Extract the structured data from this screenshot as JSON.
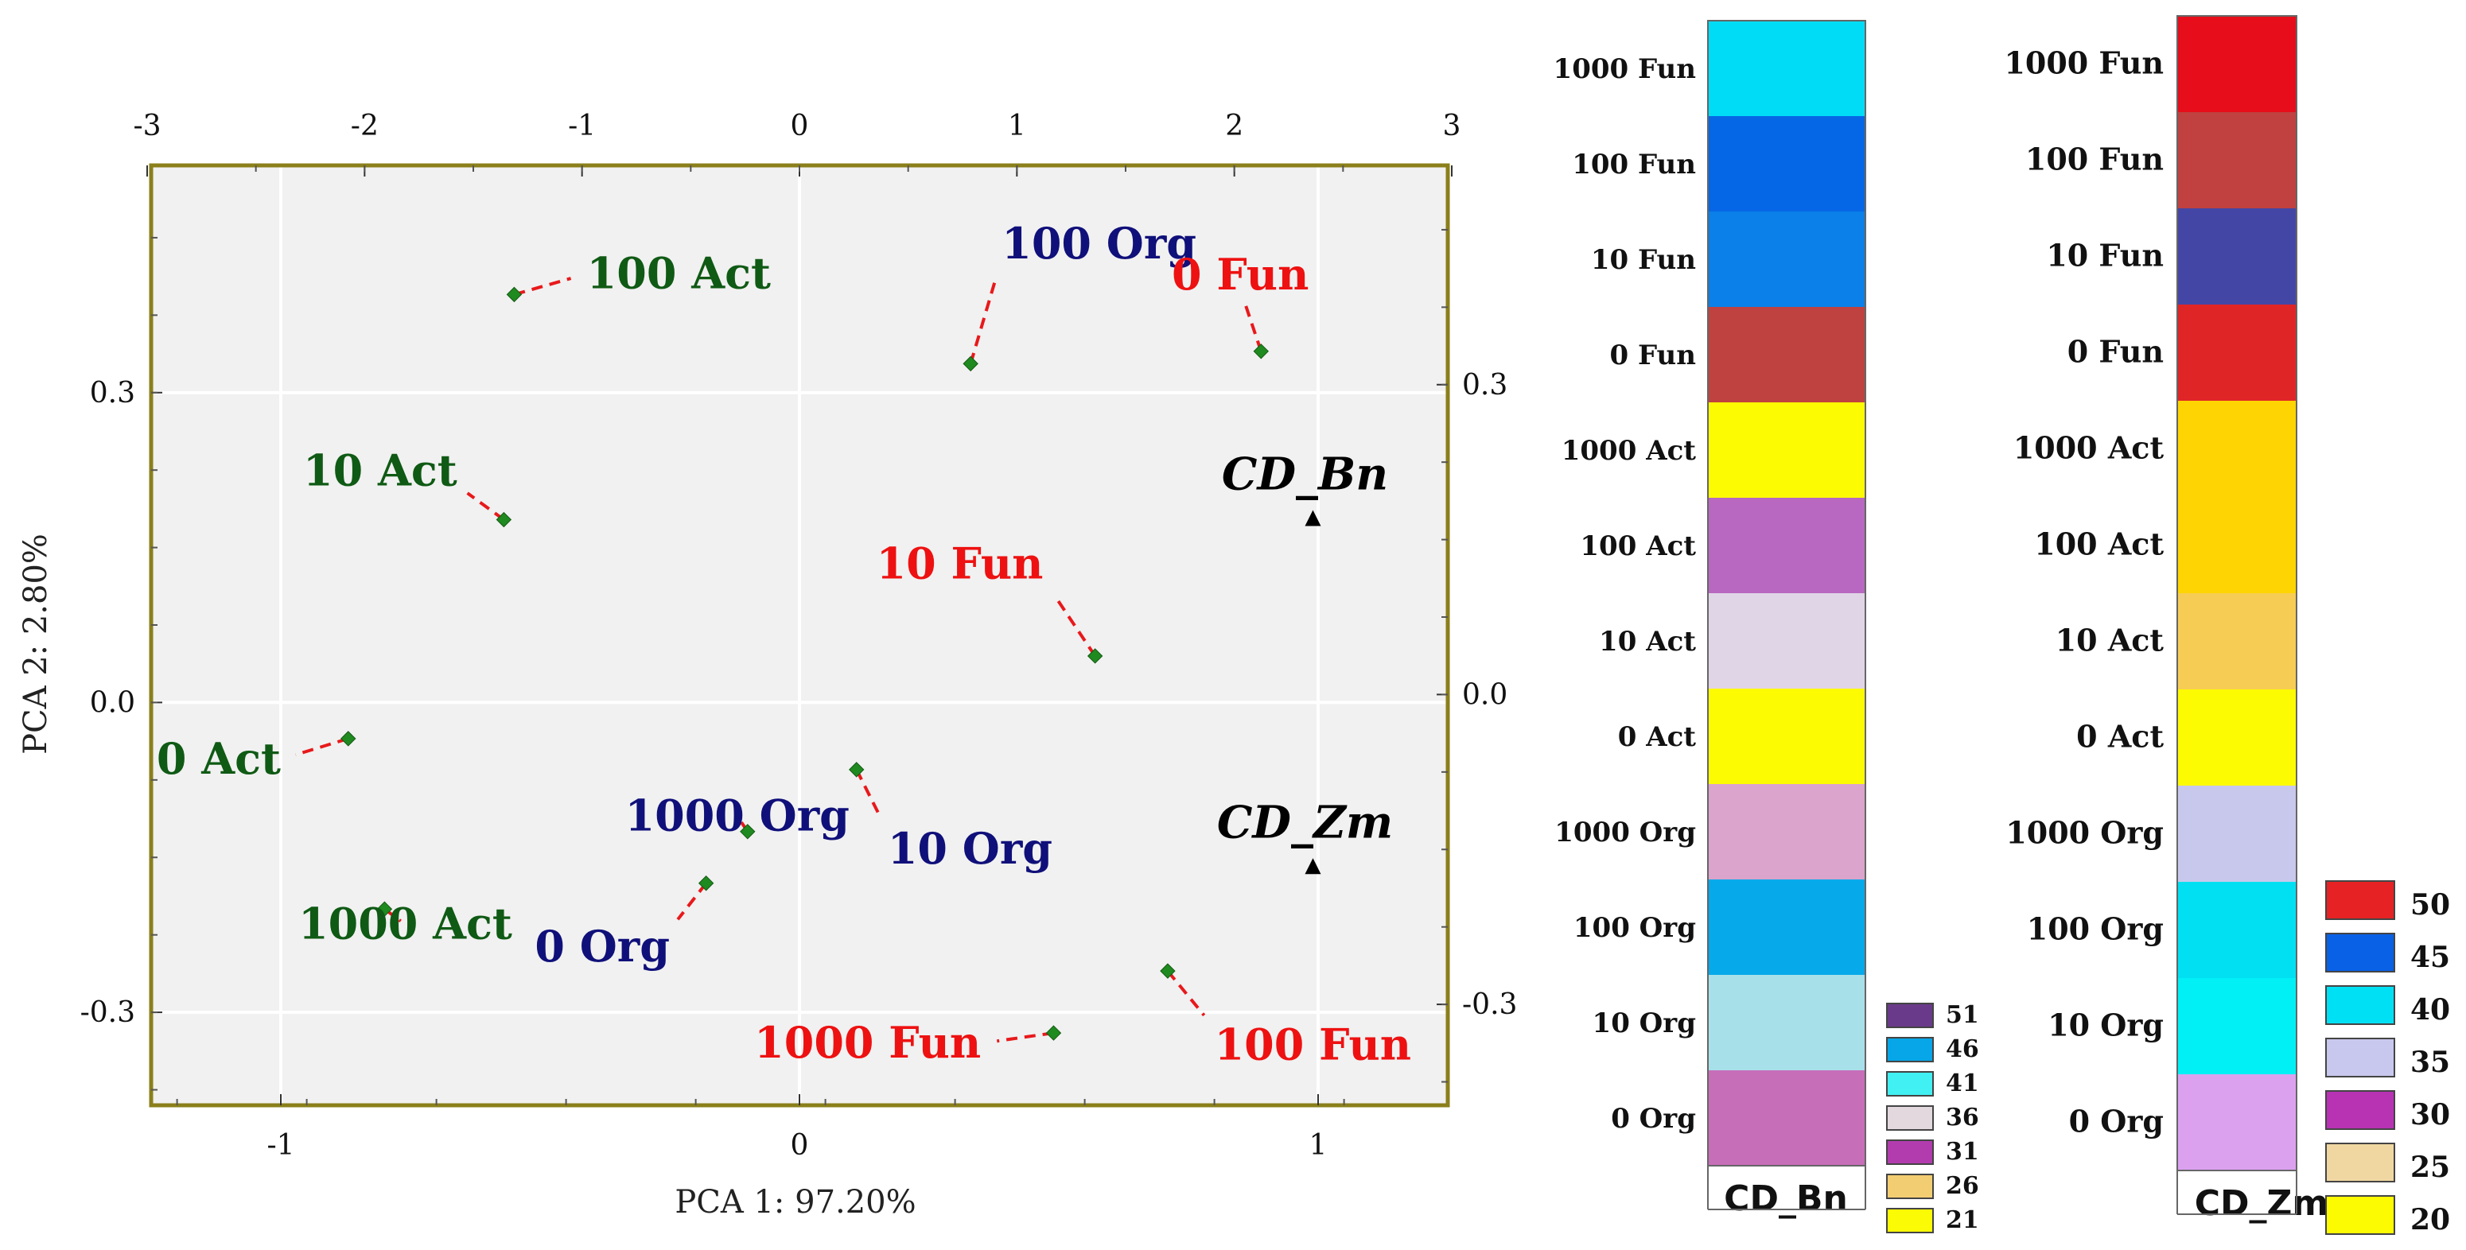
{
  "chart_data": [
    {
      "type": "scatter",
      "title": "",
      "xlabel": "PCA 1: 97.20%",
      "ylabel": "PCA 2:  2.80%",
      "xlim": [
        -1.25,
        1.25
      ],
      "ylim": [
        -0.39,
        0.52
      ],
      "grid": true,
      "x_ticks": [
        -1,
        0,
        1
      ],
      "y_ticks": [
        -0.3,
        0.0,
        0.3
      ],
      "x_tick_labels": [
        "-1",
        "0",
        "1"
      ],
      "y_tick_labels": [
        "-0.3",
        "0.0",
        "0.3"
      ],
      "top_axis": {
        "lim": [
          -3,
          3
        ],
        "ticks": [
          -3,
          -2,
          -1,
          0,
          1,
          2,
          3
        ],
        "tick_labels": [
          "-3",
          "-2",
          "-1",
          "0",
          "1",
          "2",
          "3"
        ]
      },
      "right_axis": {
        "lim": [
          -0.39,
          0.52
        ],
        "ticks": [
          -0.3,
          0.0,
          0.3
        ],
        "tick_labels": [
          "-0.3",
          "0.0",
          "0.3"
        ]
      },
      "points": [
        {
          "name": "100 Act",
          "x": -0.55,
          "y": 0.395,
          "label_x": -0.41,
          "label_y": 0.415,
          "group": "Act"
        },
        {
          "name": "10 Act",
          "x": -0.57,
          "y": 0.177,
          "label_x": -0.66,
          "label_y": 0.21,
          "group": "Act"
        },
        {
          "name": "0 Act",
          "x": -0.87,
          "y": -0.035,
          "label_x": -1.0,
          "label_y": -0.055,
          "group": "Act"
        },
        {
          "name": "1000 Act",
          "x": -0.8,
          "y": -0.2,
          "label_x": -0.76,
          "label_y": -0.215,
          "group": "Act"
        },
        {
          "name": "100 Org",
          "x": 0.33,
          "y": 0.328,
          "label_x": 0.39,
          "label_y": 0.43,
          "group": "Org"
        },
        {
          "name": "1000 Org",
          "x": -0.1,
          "y": -0.125,
          "label_x": -0.12,
          "label_y": -0.11,
          "group": "Org"
        },
        {
          "name": "10 Org",
          "x": 0.11,
          "y": -0.065,
          "label_x": 0.17,
          "label_y": -0.125,
          "group": "Org"
        },
        {
          "name": "0 Org",
          "x": -0.18,
          "y": -0.175,
          "label_x": -0.25,
          "label_y": -0.22,
          "group": "Org"
        },
        {
          "name": "0 Fun",
          "x": 0.89,
          "y": 0.34,
          "label_x": 0.85,
          "label_y": 0.4,
          "group": "Fun"
        },
        {
          "name": "10 Fun",
          "x": 0.57,
          "y": 0.045,
          "label_x": 0.47,
          "label_y": 0.12,
          "group": "Fun"
        },
        {
          "name": "1000 Fun",
          "x": 0.49,
          "y": -0.32,
          "label_x": 0.35,
          "label_y": -0.33,
          "group": "Fun"
        },
        {
          "name": "100 Fun",
          "x": 0.71,
          "y": -0.26,
          "label_x": 0.8,
          "label_y": -0.315,
          "group": "Fun"
        }
      ],
      "vectors": [
        {
          "name": "CD_Bn",
          "x": 0.99,
          "y": 0.177
        },
        {
          "name": "CD_Zm",
          "x": 0.99,
          "y": -0.16
        }
      ],
      "group_colors": {
        "Act": "#0f5a14",
        "Org": "#10107a",
        "Fun": "#ee1111"
      },
      "marker_color": "#1f8a1f",
      "connector_color": "#e8191b",
      "plot_bg": "#f1f1f1",
      "frame_color": "#8a7f1a"
    },
    {
      "type": "heatmap",
      "title": "CD_Bn",
      "rows": [
        "1000 Fun",
        "100 Fun",
        "10 Fun",
        "0 Fun",
        "1000 Act",
        "100 Act",
        "10 Act",
        "0 Act",
        "1000 Org",
        "100 Org",
        "10 Org",
        "0 Org"
      ],
      "colors": [
        "#00dcf5",
        "#0667e6",
        "#0a80e8",
        "#c04240",
        "#fdfb02",
        "#b868c0",
        "#e0d5e6",
        "#fdfb02",
        "#dba4cc",
        "#06aaea",
        "#a8e0ea",
        "#c76eb9"
      ],
      "legend": [
        {
          "label": "51",
          "color": "#6a3a8a"
        },
        {
          "label": "46",
          "color": "#06a6e8"
        },
        {
          "label": "41",
          "color": "#41f0f2"
        },
        {
          "label": "36",
          "color": "#e2d8de"
        },
        {
          "label": "31",
          "color": "#b23cae"
        },
        {
          "label": "26",
          "color": "#f3cd72"
        },
        {
          "label": "21",
          "color": "#fbfb05"
        }
      ]
    },
    {
      "type": "heatmap",
      "title": "CD_Zm",
      "rows": [
        "1000 Fun",
        "100 Fun",
        "10 Fun",
        "0 Fun",
        "1000 Act",
        "100 Act",
        "10 Act",
        "0 Act",
        "1000 Org",
        "100 Org",
        "10 Org",
        "0 Org"
      ],
      "colors": [
        "#e70d1a",
        "#c04140",
        "#4446a6",
        "#e02527",
        "#fed502",
        "#fed502",
        "#f6cc55",
        "#fdfb02",
        "#c8c8ec",
        "#00e0f2",
        "#00f0f6",
        "#dba1ef"
      ],
      "legend": [
        {
          "label": "50",
          "color": "#e62224"
        },
        {
          "label": "45",
          "color": "#0961e6"
        },
        {
          "label": "40",
          "color": "#00e0f4"
        },
        {
          "label": "35",
          "color": "#c8c8ee"
        },
        {
          "label": "30",
          "color": "#b833b4"
        },
        {
          "label": "25",
          "color": "#f0d7a2"
        },
        {
          "label": "20",
          "color": "#fdfb02"
        }
      ]
    }
  ]
}
